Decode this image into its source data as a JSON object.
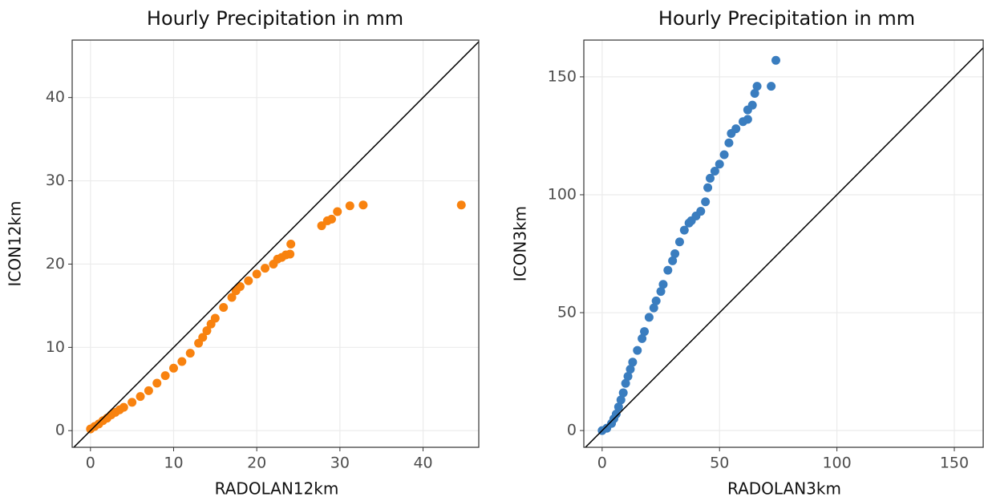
{
  "chart_data": [
    {
      "type": "scatter",
      "title": "Hourly Precipitation in mm",
      "x_label": "RADOLAN12km",
      "y_label": "ICON12km",
      "color": "#f8820f",
      "grid": true,
      "identity_line": true,
      "xlim": [
        -2.2,
        46.7
      ],
      "ylim": [
        -2.0,
        46.9
      ],
      "xticks": [
        0,
        10,
        20,
        30,
        40
      ],
      "yticks": [
        0,
        10,
        20,
        30,
        40
      ],
      "x": [
        0,
        0.5,
        1,
        1.5,
        2,
        2.5,
        3,
        3.5,
        4,
        5,
        6,
        7,
        8,
        9,
        10,
        11,
        12,
        13,
        13.5,
        14,
        14.5,
        15,
        16,
        17,
        17.5,
        18,
        19,
        20,
        21,
        22,
        22.5,
        23,
        23.5,
        24,
        24.1,
        27.8,
        28.5,
        29,
        29.7,
        31.2,
        32.8,
        44.6
      ],
      "values": [
        0.2,
        0.5,
        0.8,
        1.2,
        1.5,
        1.9,
        2.2,
        2.5,
        2.8,
        3.4,
        4.1,
        4.8,
        5.7,
        6.6,
        7.5,
        8.3,
        9.3,
        10.5,
        11.2,
        12,
        12.8,
        13.5,
        14.8,
        16,
        16.8,
        17.3,
        18,
        18.8,
        19.5,
        20,
        20.6,
        20.8,
        21.1,
        21.2,
        22.4,
        24.6,
        25.2,
        25.4,
        26.3,
        27,
        27.1,
        27.1
      ]
    },
    {
      "type": "scatter",
      "title": "Hourly Precipitation in mm",
      "x_label": "RADOLAN3km",
      "y_label": "ICON3km",
      "color": "#3a7dbf",
      "grid": true,
      "identity_line": true,
      "xlim": [
        -7.8,
        162.3
      ],
      "ylim": [
        -7.1,
        165.6
      ],
      "xticks": [
        0,
        50,
        100,
        150
      ],
      "yticks": [
        0,
        50,
        100,
        150
      ],
      "x": [
        0,
        2,
        4,
        5,
        6,
        7,
        8,
        9,
        10,
        11,
        12,
        13,
        15,
        17,
        18,
        20,
        22,
        23,
        25,
        26,
        28,
        30,
        31,
        33,
        35,
        37,
        38,
        40,
        42,
        44,
        45,
        46,
        48,
        50,
        52,
        54,
        55,
        57,
        60,
        62,
        62,
        64,
        65,
        66,
        72,
        74
      ],
      "values": [
        0,
        1,
        3,
        5,
        7,
        10,
        13,
        16,
        20,
        23,
        26,
        29,
        34,
        39,
        42,
        48,
        52,
        55,
        59,
        62,
        68,
        72,
        75,
        80,
        85,
        88,
        89,
        91,
        93,
        97,
        103,
        107,
        110,
        113,
        117,
        122,
        126,
        128,
        131,
        132,
        136,
        138,
        143,
        146,
        146,
        157
      ]
    }
  ]
}
